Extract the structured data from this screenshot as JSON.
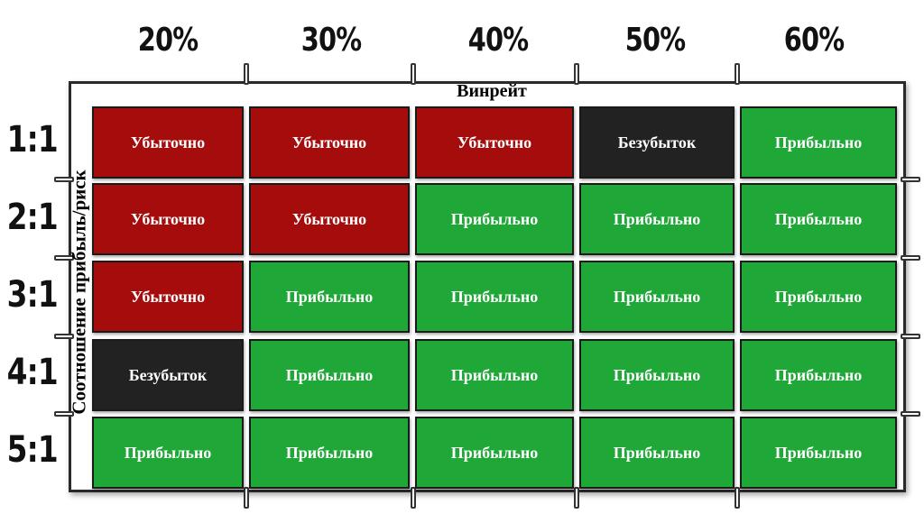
{
  "x_axis_title": "Винрейт",
  "y_axis_title": "Соотношение прибыль/риск",
  "columns": [
    "20%",
    "30%",
    "40%",
    "50%",
    "60%"
  ],
  "rows": [
    "1:1",
    "2:1",
    "3:1",
    "4:1",
    "5:1"
  ],
  "colors": {
    "Убыточно": "#a50d0d",
    "Прибыльно": "#1fa738",
    "Безубыток": "#222222"
  },
  "cells": [
    [
      "Убыточно",
      "Убыточно",
      "Убыточно",
      "Безубыток",
      "Прибыльно"
    ],
    [
      "Убыточно",
      "Убыточно",
      "Прибыльно",
      "Прибыльно",
      "Прибыльно"
    ],
    [
      "Убыточно",
      "Прибыльно",
      "Прибыльно",
      "Прибыльно",
      "Прибыльно"
    ],
    [
      "Безубыток",
      "Прибыльно",
      "Прибыльно",
      "Прибыльно",
      "Прибыльно"
    ],
    [
      "Прибыльно",
      "Прибыльно",
      "Прибыльно",
      "Прибыльно",
      "Прибыльно"
    ]
  ]
}
